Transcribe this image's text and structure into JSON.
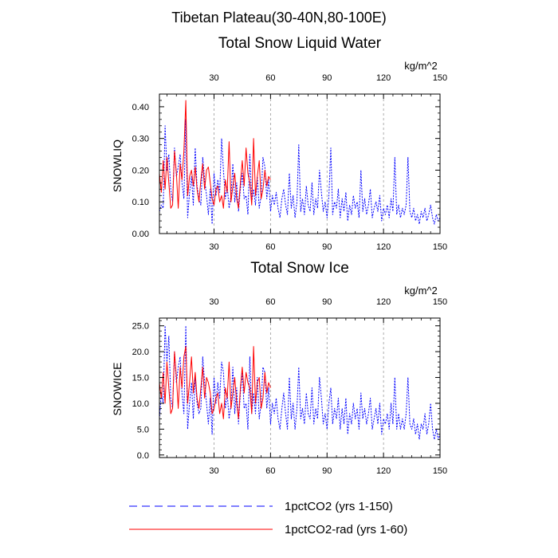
{
  "figure": {
    "title": "Tibetan Plateau(30-40N,80-100E)",
    "units": "kg/m^2"
  },
  "legend": {
    "items": [
      {
        "label": "1pctCO2 (yrs 1-150)",
        "color": "#0000ff",
        "dash": true
      },
      {
        "label": "1pctCO2-rad (yrs 1-60)",
        "color": "#ff0000",
        "dash": false
      }
    ]
  },
  "chart_data": [
    {
      "type": "line",
      "title": "Total Snow Liquid Water",
      "ylabel": "SNOWLIQ",
      "units": "kg/m^2",
      "xlim": [
        1,
        150
      ],
      "ylim": [
        0,
        0.44
      ],
      "xticks": [
        30,
        60,
        90,
        120,
        150
      ],
      "xtick_labels": [
        "30",
        "60",
        "90",
        "120",
        "150"
      ],
      "yticks": [
        0,
        0.1,
        0.2,
        0.3,
        0.4
      ],
      "ytick_labels": [
        "0.00",
        "0.10",
        "0.20",
        "0.30",
        "0.40"
      ],
      "grid": "vertical dashed at x ticks",
      "series": [
        {
          "name": "1pctCO2 (yrs 1-150)",
          "color": "#0000ff",
          "dash": true,
          "x_start": 1,
          "values": [
            0.07,
            0.09,
            0.08,
            0.34,
            0.2,
            0.25,
            0.14,
            0.1,
            0.27,
            0.18,
            0.21,
            0.25,
            0.16,
            0.11,
            0.36,
            0.05,
            0.13,
            0.18,
            0.09,
            0.27,
            0.15,
            0.11,
            0.09,
            0.24,
            0.17,
            0.12,
            0.06,
            0.14,
            0.03,
            0.19,
            0.12,
            0.17,
            0.13,
            0.3,
            0.2,
            0.11,
            0.15,
            0.08,
            0.12,
            0.22,
            0.1,
            0.16,
            0.07,
            0.14,
            0.19,
            0.11,
            0.12,
            0.06,
            0.25,
            0.1,
            0.14,
            0.09,
            0.18,
            0.08,
            0.12,
            0.24,
            0.21,
            0.11,
            0.17,
            0.07,
            0.12,
            0.09,
            0.13,
            0.08,
            0.05,
            0.11,
            0.14,
            0.09,
            0.06,
            0.19,
            0.08,
            0.12,
            0.05,
            0.1,
            0.28,
            0.07,
            0.11,
            0.06,
            0.15,
            0.09,
            0.07,
            0.16,
            0.06,
            0.11,
            0.08,
            0.2,
            0.13,
            0.07,
            0.1,
            0.05,
            0.12,
            0.27,
            0.06,
            0.1,
            0.08,
            0.14,
            0.05,
            0.11,
            0.07,
            0.13,
            0.04,
            0.09,
            0.06,
            0.12,
            0.08,
            0.1,
            0.05,
            0.2,
            0.07,
            0.11,
            0.06,
            0.09,
            0.14,
            0.05,
            0.08,
            0.1,
            0.07,
            0.12,
            0.04,
            0.08,
            0.06,
            0.09,
            0.05,
            0.11,
            0.07,
            0.24,
            0.06,
            0.09,
            0.05,
            0.08,
            0.06,
            0.09,
            0.24,
            0.07,
            0.05,
            0.08,
            0.04,
            0.06,
            0.03,
            0.07,
            0.05,
            0.08,
            0.04,
            0.06,
            0.09,
            0.05,
            0.03,
            0.06,
            0.04,
            0.05
          ]
        },
        {
          "name": "1pctCO2-rad (yrs 1-60)",
          "color": "#ff0000",
          "dash": false,
          "x_start": 1,
          "values": [
            0.19,
            0.13,
            0.23,
            0.14,
            0.24,
            0.16,
            0.08,
            0.09,
            0.26,
            0.19,
            0.08,
            0.22,
            0.17,
            0.26,
            0.42,
            0.12,
            0.18,
            0.2,
            0.15,
            0.21,
            0.14,
            0.1,
            0.17,
            0.22,
            0.14,
            0.2,
            0.21,
            0.16,
            0.11,
            0.09,
            0.14,
            0.15,
            0.1,
            0.12,
            0.08,
            0.17,
            0.13,
            0.29,
            0.1,
            0.15,
            0.19,
            0.11,
            0.08,
            0.16,
            0.23,
            0.15,
            0.27,
            0.19,
            0.16,
            0.09,
            0.3,
            0.12,
            0.18,
            0.23,
            0.11,
            0.14,
            0.2,
            0.15,
            0.18,
            0.17
          ]
        }
      ]
    },
    {
      "type": "line",
      "title": "Total Snow Ice",
      "ylabel": "SNOWICE",
      "units": "kg/m^2",
      "xlim": [
        1,
        150
      ],
      "ylim": [
        -0.5,
        26.5
      ],
      "xticks": [
        30,
        60,
        90,
        120,
        150
      ],
      "xtick_labels": [
        "30",
        "60",
        "90",
        "120",
        "150"
      ],
      "yticks": [
        0,
        5,
        10,
        15,
        20,
        25
      ],
      "ytick_labels": [
        "0.0",
        "5.0",
        "10.0",
        "15.0",
        "20.0",
        "25.0"
      ],
      "grid": "vertical dashed at x ticks",
      "series": [
        {
          "name": "1pctCO2 (yrs 1-150)",
          "color": "#0000ff",
          "dash": true,
          "x_start": 1,
          "values": [
            7,
            12,
            10,
            25,
            18,
            23,
            11,
            9,
            20,
            14,
            17,
            19,
            12,
            8,
            25,
            5,
            10,
            14,
            7,
            15,
            10,
            8,
            9,
            19,
            14,
            10,
            6,
            11,
            4,
            15,
            10,
            14,
            11,
            18,
            16,
            9,
            12,
            7,
            10,
            17,
            8,
            13,
            6,
            12,
            16,
            9,
            10,
            5,
            19,
            8,
            12,
            8,
            15,
            7,
            10,
            17,
            16,
            9,
            13,
            6,
            10,
            8,
            11,
            7,
            5,
            9,
            12,
            8,
            5,
            15,
            7,
            10,
            5,
            9,
            17,
            7,
            9,
            6,
            12,
            8,
            7,
            13,
            6,
            9,
            7,
            15,
            11,
            6,
            8,
            5,
            10,
            13,
            6,
            9,
            7,
            11,
            5,
            9,
            6,
            11,
            4,
            8,
            6,
            10,
            7,
            9,
            5,
            12,
            7,
            9,
            6,
            8,
            11,
            5,
            7,
            9,
            6,
            10,
            4,
            7,
            6,
            8,
            5,
            10,
            6,
            15,
            5,
            8,
            5,
            7,
            5,
            8,
            15,
            6,
            5,
            7,
            4,
            6,
            3,
            6,
            5,
            8,
            4,
            6,
            10,
            5,
            3,
            5,
            3,
            4
          ]
        },
        {
          "name": "1pctCO2-rad (yrs 1-60)",
          "color": "#ff0000",
          "dash": false,
          "x_start": 1,
          "values": [
            14,
            11,
            16,
            10,
            18,
            13,
            8,
            9,
            20,
            15,
            9,
            17,
            13,
            19,
            21,
            10,
            14,
            19,
            12,
            16,
            11,
            9,
            13,
            17,
            11,
            15,
            14,
            12,
            8,
            9,
            11,
            12,
            8,
            10,
            7,
            13,
            11,
            18,
            9,
            12,
            15,
            10,
            7,
            13,
            17,
            12,
            16,
            14,
            13,
            8,
            21,
            10,
            14,
            15,
            9,
            11,
            16,
            12,
            14,
            13
          ]
        }
      ]
    }
  ]
}
